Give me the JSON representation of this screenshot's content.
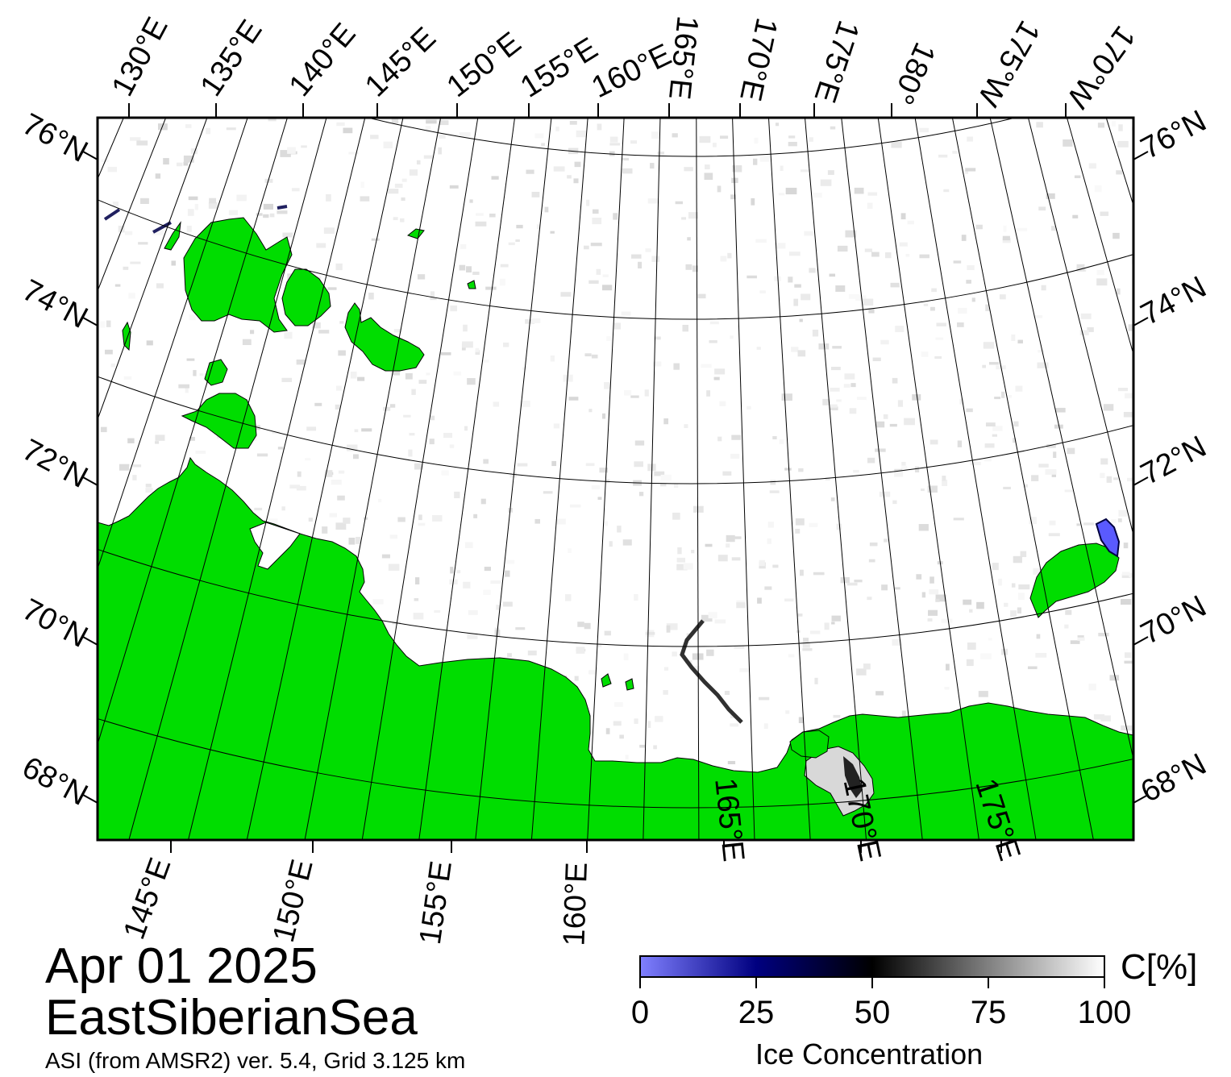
{
  "map": {
    "date": "Apr 01 2025",
    "region": "EastSiberianSea",
    "credit": "ASI (from AMSR2) ver. 5.4,  Grid 3.125 km",
    "land_color": "#00dd00",
    "ocean_color": "#ffffff",
    "top_lon_labels": [
      "130°E",
      "135°E",
      "140°E",
      "145°E",
      "150°E",
      "155°E",
      "160°E",
      "165°E",
      "170°E",
      "175°E",
      "180°",
      "175°W",
      "170°W"
    ],
    "bottom_lon_labels": [
      "145°E",
      "150°E",
      "155°E",
      "160°E",
      "165°E",
      "170°E",
      "175°E"
    ],
    "lat_labels": [
      "76°N",
      "74°N",
      "72°N",
      "70°N",
      "68°N"
    ]
  },
  "colorbar": {
    "title": "Ice Concentration",
    "unit": "C[%]",
    "ticks": [
      "0",
      "25",
      "50",
      "75",
      "100"
    ],
    "colors": [
      "#8080ff",
      "#000080",
      "#000000",
      "#808080",
      "#ffffff"
    ]
  }
}
